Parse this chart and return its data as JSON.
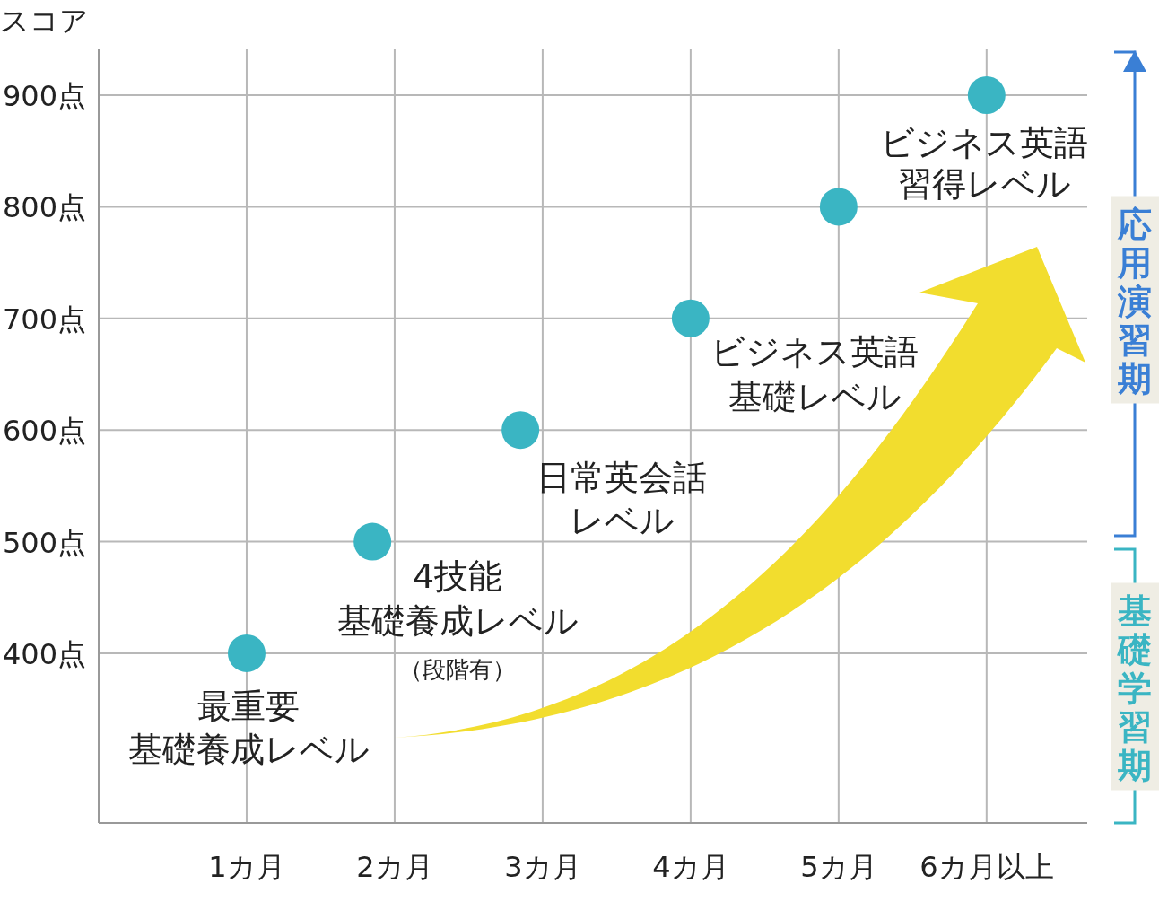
{
  "chart_data": {
    "type": "scatter",
    "ylabel": "スコア",
    "x": [
      1,
      1.85,
      2.85,
      4,
      5,
      6
    ],
    "values": [
      400,
      500,
      600,
      700,
      800,
      900
    ],
    "color": "#3ab5c3",
    "marker": "circle",
    "grid": true,
    "xlim": [
      0,
      6.68
    ],
    "xticks": [
      {
        "value": 1,
        "label": "1カ月"
      },
      {
        "value": 2,
        "label": "2カ月"
      },
      {
        "value": 3,
        "label": "3カ月"
      },
      {
        "value": 4,
        "label": "4カ月"
      },
      {
        "value": 5,
        "label": "5カ月"
      },
      {
        "value": 6,
        "label": "6カ月以上"
      }
    ],
    "ylim": [
      248,
      941
    ],
    "yticks": [
      {
        "value": 400,
        "label": "400点"
      },
      {
        "value": 500,
        "label": "500点"
      },
      {
        "value": 600,
        "label": "600点"
      },
      {
        "value": 700,
        "label": "700点"
      },
      {
        "value": 800,
        "label": "800点"
      },
      {
        "value": 900,
        "label": "900点"
      }
    ],
    "annotations": [
      "最重要",
      "基礎養成レベル",
      "4技能",
      "基礎養成レベル",
      "（段階有）",
      "日常英会話",
      "レベル",
      "ビジネス英語",
      "基礎レベル",
      "ビジネス英語",
      "習得レベル",
      "応用演習期",
      "基礎学習期"
    ]
  }
}
